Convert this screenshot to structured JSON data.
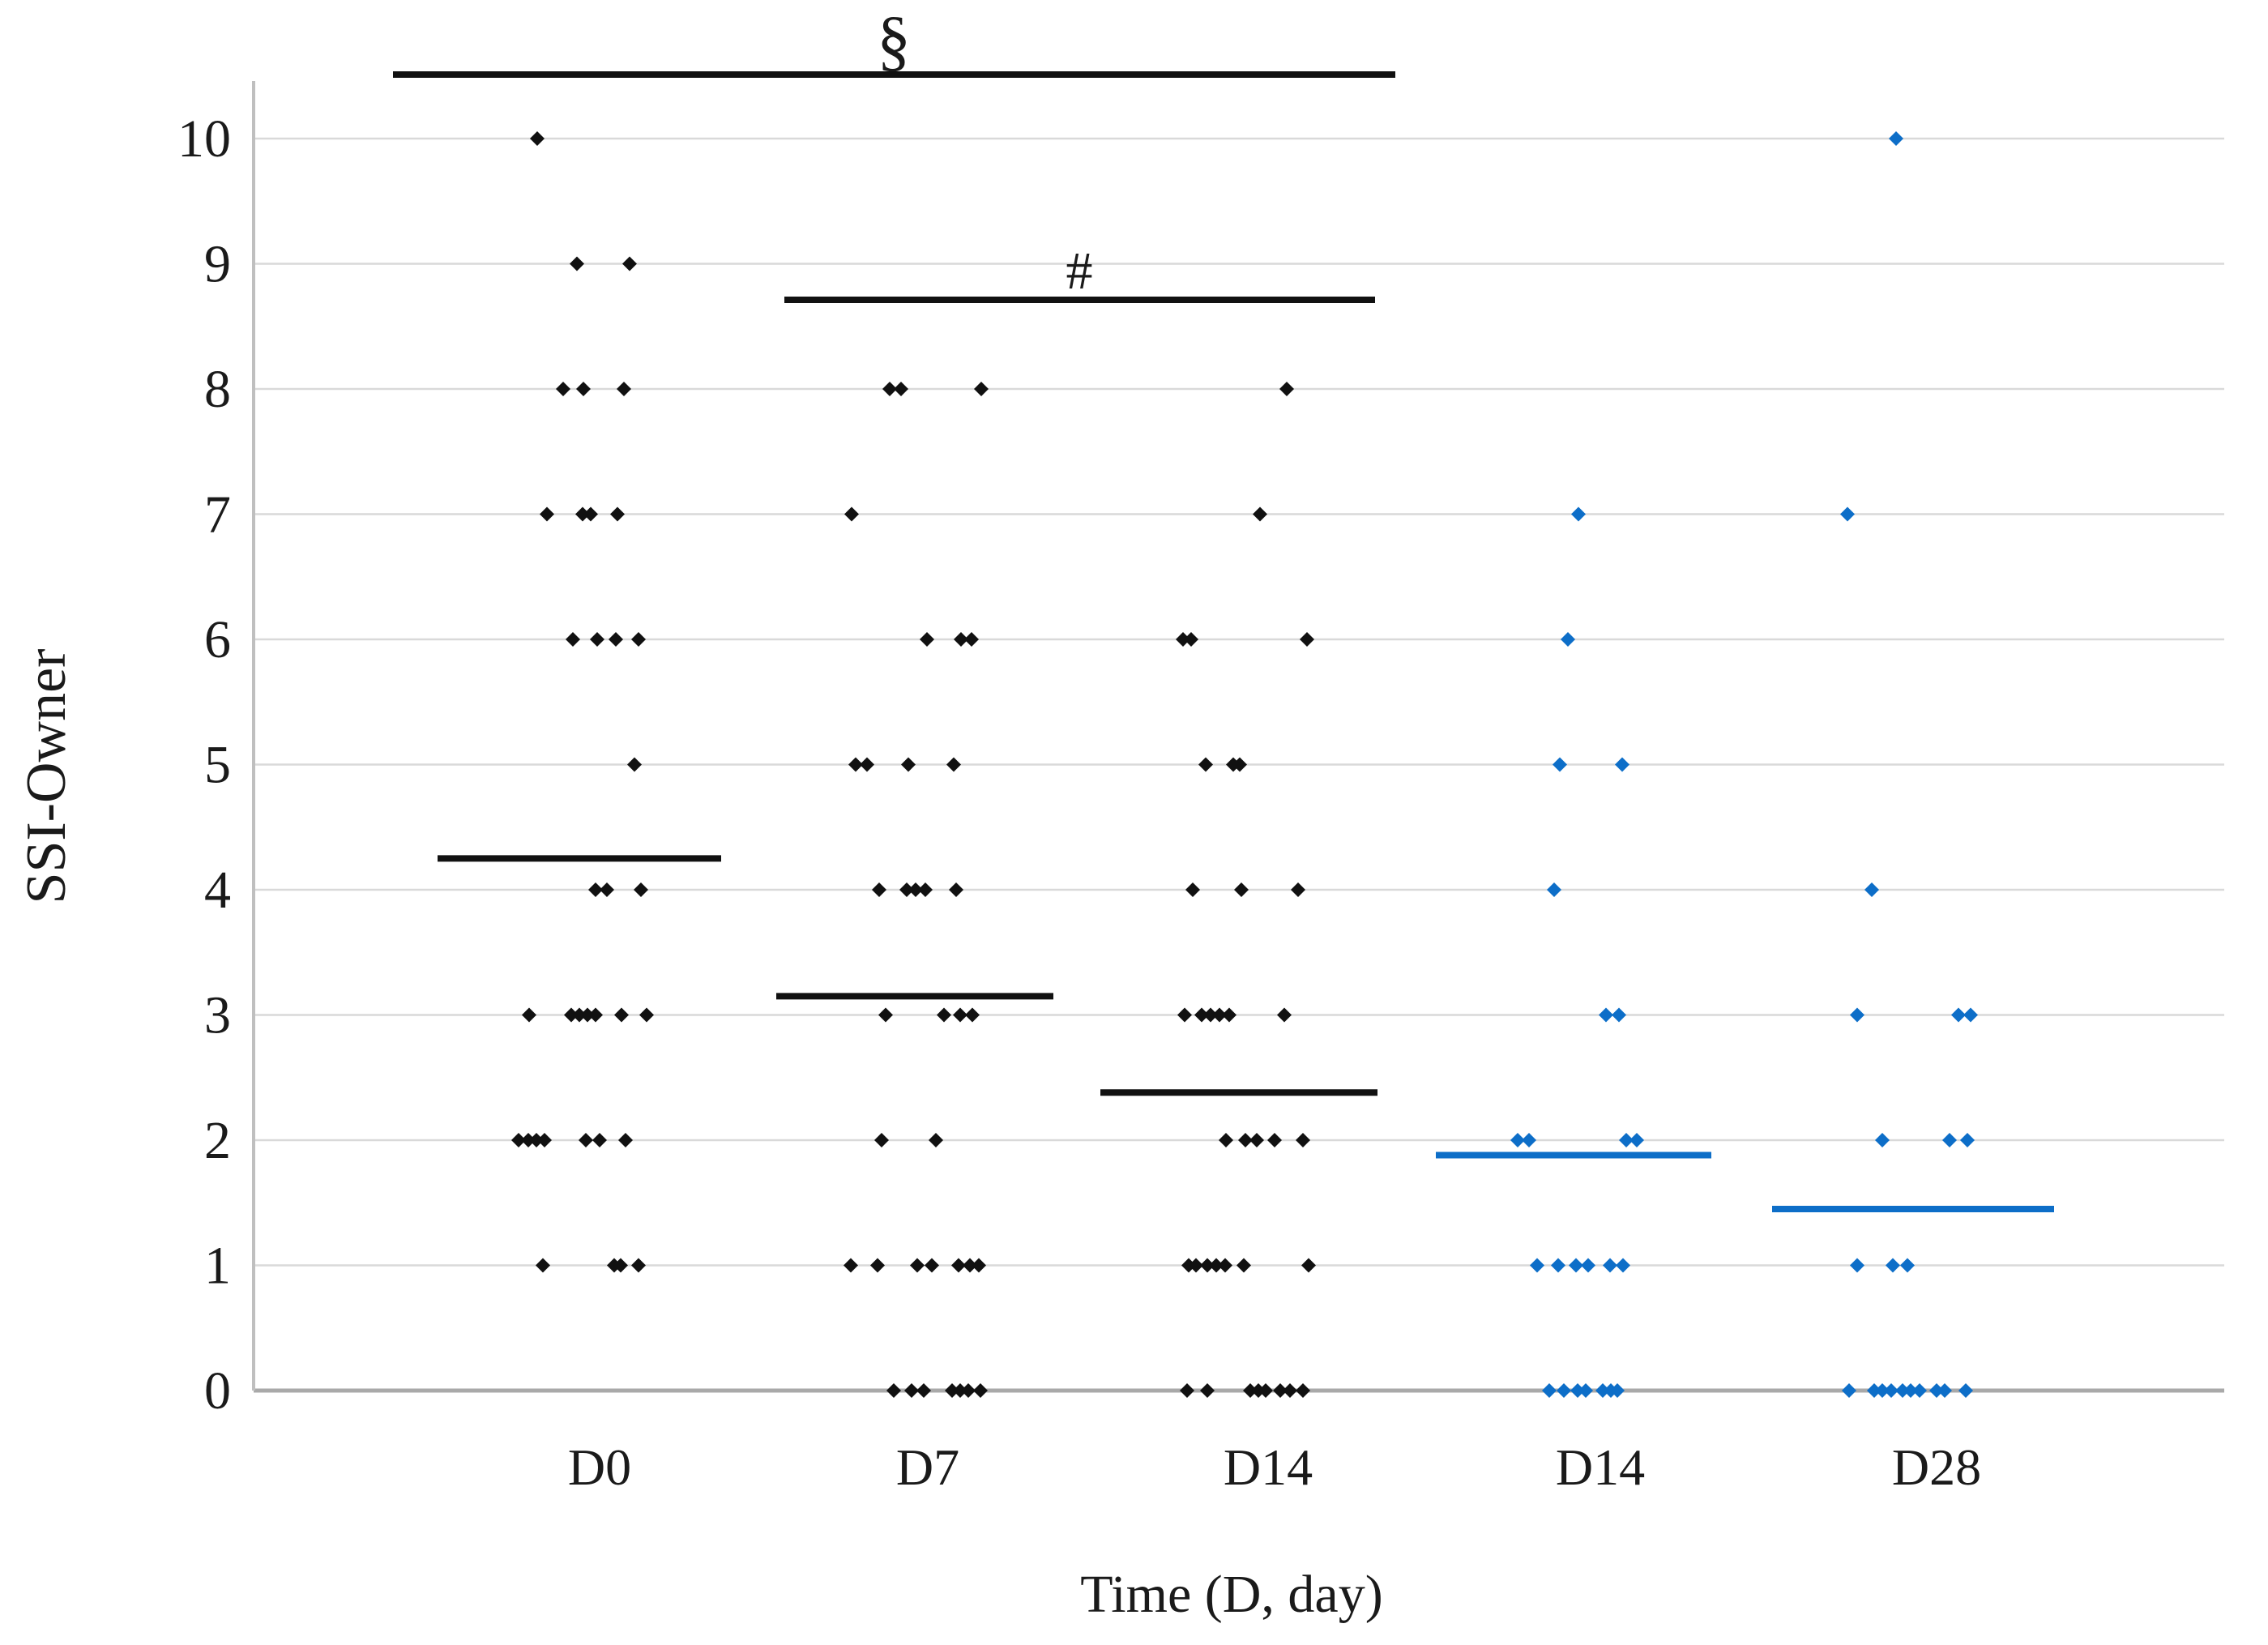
{
  "page": {
    "background": "#ffffff"
  },
  "chart_data": {
    "type": "scatter",
    "title": "",
    "xlabel": "Time (D, day)",
    "ylabel": "SSI-Owner",
    "ylim": [
      0,
      10
    ],
    "yticks": [
      "10",
      "9",
      "8",
      "7",
      "6",
      "5",
      "4",
      "3",
      "2",
      "1",
      "0"
    ],
    "grid": true,
    "legend_position": "none",
    "marker": "diamond",
    "colors": {
      "black_series": "#111111",
      "blue_series": "#0D6EC8",
      "gridline": "#D9D9D9",
      "zero_line": "#A9A9A9",
      "axis_line": "#BFBFBF",
      "text": "#1A1A1A"
    },
    "categories": [
      "D0",
      "D7",
      "D14",
      "D14",
      "D28"
    ],
    "groups": [
      {
        "label": "D0",
        "color": "black",
        "label_x": 740,
        "mean": {
          "value": 4.25,
          "x1": 540,
          "x2": 890
        },
        "points": [
          {
            "value": 10,
            "x": [
              663
            ]
          },
          {
            "value": 9,
            "x": [
              712,
              777
            ]
          },
          {
            "value": 8,
            "x": [
              695,
              720,
              770
            ]
          },
          {
            "value": 7,
            "x": [
              675,
              719,
              729,
              762
            ]
          },
          {
            "value": 6,
            "x": [
              707,
              737,
              760,
              788
            ]
          },
          {
            "value": 5,
            "x": [
              783
            ]
          },
          {
            "value": 4,
            "x": [
              735,
              749,
              791
            ]
          },
          {
            "value": 3,
            "x": [
              653,
              705,
              715,
              725,
              735,
              767,
              798
            ]
          },
          {
            "value": 2,
            "x": [
              640,
              652,
              662,
              672,
              723,
              740,
              772
            ]
          },
          {
            "value": 1,
            "x": [
              670,
              758,
              766,
              788
            ]
          }
        ]
      },
      {
        "label": "D7",
        "color": "black",
        "label_x": 1145,
        "mean": {
          "value": 3.15,
          "x1": 958,
          "x2": 1300
        },
        "points": [
          {
            "value": 8,
            "x": [
              1098,
              1112,
              1211
            ]
          },
          {
            "value": 7,
            "x": [
              1051
            ]
          },
          {
            "value": 6,
            "x": [
              1144,
              1186,
              1199
            ]
          },
          {
            "value": 5,
            "x": [
              1056,
              1070,
              1121,
              1177
            ]
          },
          {
            "value": 4,
            "x": [
              1085,
              1119,
              1130,
              1142,
              1180
            ]
          },
          {
            "value": 3,
            "x": [
              1093,
              1165,
              1185,
              1200
            ]
          },
          {
            "value": 2,
            "x": [
              1088,
              1155
            ]
          },
          {
            "value": 1,
            "x": [
              1050,
              1083,
              1132,
              1150,
              1183,
              1197,
              1208
            ]
          },
          {
            "value": 0,
            "x": [
              1103,
              1125,
              1140,
              1175,
              1185,
              1195,
              1210
            ]
          }
        ]
      },
      {
        "label": "D14",
        "color": "black",
        "label_x": 1565,
        "mean": {
          "value": 2.38,
          "x1": 1358,
          "x2": 1700
        },
        "points": [
          {
            "value": 8,
            "x": [
              1588
            ]
          },
          {
            "value": 7,
            "x": [
              1555
            ]
          },
          {
            "value": 6,
            "x": [
              1460,
              1470,
              1613
            ]
          },
          {
            "value": 5,
            "x": [
              1488,
              1522,
              1530
            ]
          },
          {
            "value": 4,
            "x": [
              1472,
              1532,
              1602
            ]
          },
          {
            "value": 3,
            "x": [
              1462,
              1483,
              1494,
              1505,
              1517,
              1585
            ]
          },
          {
            "value": 2,
            "x": [
              1513,
              1537,
              1551,
              1573,
              1608
            ]
          },
          {
            "value": 1,
            "x": [
              1467,
              1476,
              1490,
              1501,
              1512,
              1535,
              1615
            ]
          },
          {
            "value": 0,
            "x": [
              1465,
              1490,
              1543,
              1553,
              1562,
              1580,
              1592,
              1608
            ]
          }
        ]
      },
      {
        "label": "D14",
        "color": "blue",
        "label_x": 1975,
        "mean": {
          "value": 1.88,
          "x1": 1772,
          "x2": 2112
        },
        "points": [
          {
            "value": 7,
            "x": [
              1948
            ]
          },
          {
            "value": 6,
            "x": [
              1935
            ]
          },
          {
            "value": 5,
            "x": [
              1925,
              2002
            ]
          },
          {
            "value": 4,
            "x": [
              1918
            ]
          },
          {
            "value": 3,
            "x": [
              1982,
              1998
            ]
          },
          {
            "value": 2,
            "x": [
              1873,
              1887,
              2007,
              2020
            ]
          },
          {
            "value": 1,
            "x": [
              1897,
              1923,
              1945,
              1960,
              1987,
              2003
            ]
          },
          {
            "value": 0,
            "x": [
              1912,
              1930,
              1947,
              1957,
              1978,
              1988,
              1996
            ]
          }
        ]
      },
      {
        "label": "D28",
        "color": "blue",
        "label_x": 2390,
        "mean": {
          "value": 1.45,
          "x1": 2187,
          "x2": 2535
        },
        "points": [
          {
            "value": 10,
            "x": [
              2340
            ]
          },
          {
            "value": 7,
            "x": [
              2280
            ]
          },
          {
            "value": 4,
            "x": [
              2310
            ]
          },
          {
            "value": 3,
            "x": [
              2292,
              2417,
              2432
            ]
          },
          {
            "value": 2,
            "x": [
              2323,
              2406,
              2428
            ]
          },
          {
            "value": 1,
            "x": [
              2292,
              2336,
              2354
            ]
          },
          {
            "value": 0,
            "x": [
              2282,
              2313,
              2323,
              2334,
              2348,
              2358,
              2369,
              2390,
              2400,
              2426
            ]
          }
        ]
      }
    ],
    "annotations": [
      {
        "symbol": "§",
        "x1": 485,
        "x2": 1722,
        "bar_y": 92,
        "symbol_x": 1103
      },
      {
        "symbol": "#",
        "x1": 968,
        "x2": 1697,
        "bar_y": 370,
        "symbol_x": 1332
      }
    ]
  }
}
